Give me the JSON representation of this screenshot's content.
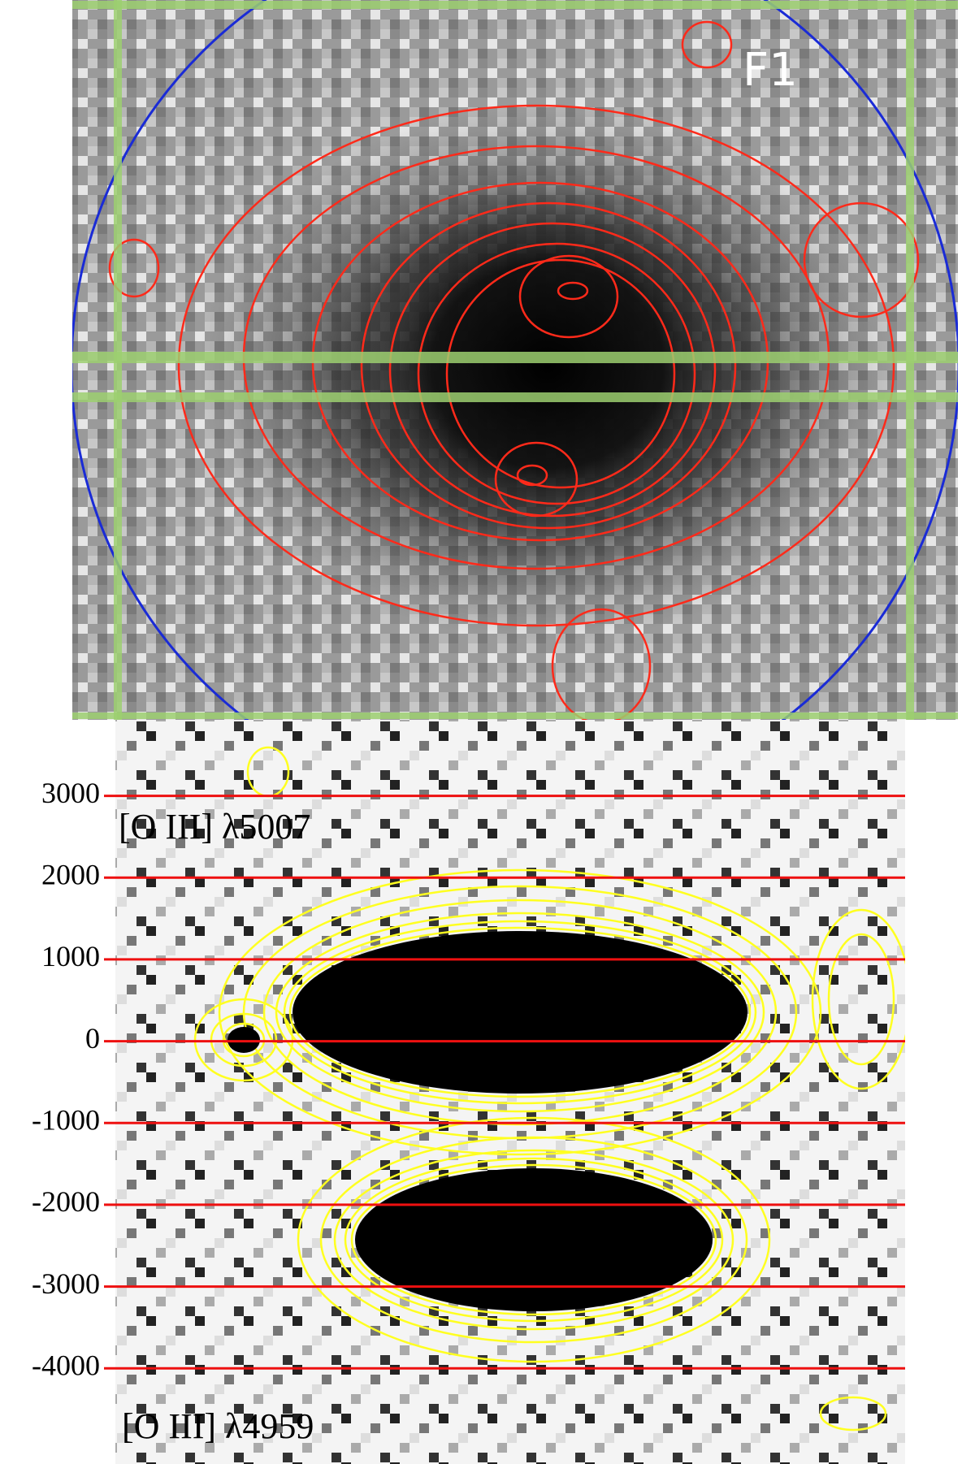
{
  "top_panel": {
    "label": "F1"
  },
  "bottom_panel": {
    "ylim": [
      -5170,
      3930
    ],
    "yticks": [
      3000,
      2000,
      1000,
      0,
      -1000,
      -2000,
      -3000,
      -4000
    ],
    "labels": [
      "[O III] λ5007",
      "[O III] λ4959"
    ]
  }
}
